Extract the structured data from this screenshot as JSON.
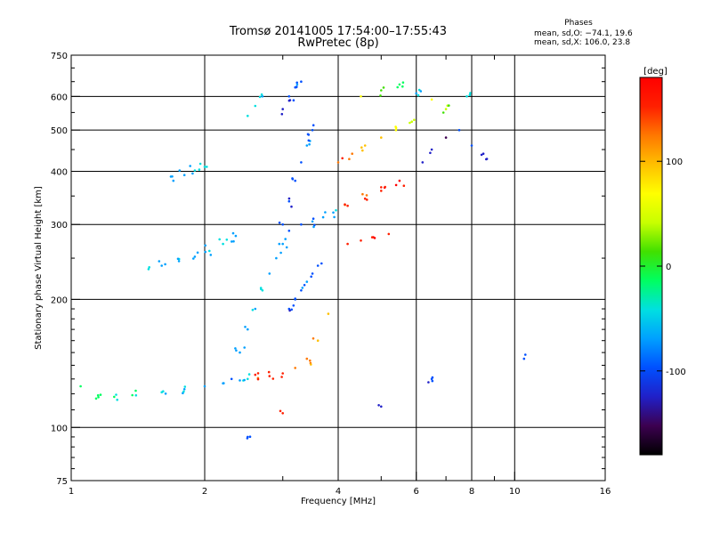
{
  "chart_data": {
    "type": "scatter",
    "title": "Tromsø 20141005 17:54:00–17:55:43",
    "subtitle": "RwPretec (8p)",
    "xlabel": "Frequency [MHz]",
    "ylabel": "Stationary phase Virtual Height [km]",
    "x_scale": "log",
    "y_scale": "log",
    "xlim": [
      1,
      16
    ],
    "ylim": [
      75,
      750
    ],
    "x_ticks": [
      1,
      2,
      4,
      6,
      8,
      10,
      16
    ],
    "y_ticks": [
      75,
      100,
      200,
      300,
      400,
      500,
      600,
      750
    ],
    "grid": true,
    "stats": {
      "heading": "Phases",
      "o_mode": "mean, sd,O: −74.1, 19.6",
      "x_mode": "mean, sd,X: 106.0, 23.8"
    },
    "colorbar": {
      "label": "[deg]",
      "range": [
        -180,
        180
      ],
      "ticks": [
        100,
        0,
        -100
      ],
      "colors": [
        "#000000",
        "#3c0050",
        "#2020c8",
        "#0050ff",
        "#00a0ff",
        "#00e0e0",
        "#00ff60",
        "#40e000",
        "#c8ff00",
        "#ffff00",
        "#ffc000",
        "#ff7800",
        "#ff2000",
        "#ff0000"
      ]
    },
    "series": [
      {
        "x": [
          1.05,
          1.15,
          1.25,
          1.4,
          1.6,
          1.8,
          2.0,
          2.2,
          2.4,
          2.5
        ],
        "y": [
          125,
          119,
          118,
          119,
          121,
          123,
          125,
          127,
          129,
          130
        ],
        "phase": [
          -20,
          -15,
          -25,
          -30,
          -55,
          -60,
          -65,
          -70,
          -60,
          -50
        ]
      },
      {
        "x": [
          1.5,
          1.6,
          1.75,
          1.9,
          2.05,
          2.2,
          2.35
        ],
        "y": [
          238,
          240,
          246,
          252,
          260,
          270,
          282
        ],
        "phase": [
          -55,
          -60,
          -65,
          -60,
          -55,
          -50,
          -60
        ]
      },
      {
        "x": [
          1.7,
          1.8,
          1.9,
          2.0
        ],
        "y": [
          380,
          392,
          402,
          410
        ],
        "phase": [
          -70,
          -60,
          -50,
          -40
        ]
      },
      {
        "x": [
          2.3,
          2.4,
          2.5,
          2.6,
          2.7,
          2.8,
          2.9,
          3.0,
          3.1
        ],
        "y": [
          130,
          150,
          170,
          190,
          210,
          230,
          250,
          270,
          290
        ],
        "phase": [
          -90,
          -80,
          -70,
          -60,
          -50,
          -60,
          -70,
          -80,
          -90
        ]
      },
      {
        "x": [
          3.0,
          3.1,
          3.2,
          3.3,
          3.4,
          3.5
        ],
        "y": [
          300,
          340,
          380,
          420,
          460,
          500
        ],
        "phase": [
          -100,
          -110,
          -95,
          -90,
          -80,
          -85
        ]
      },
      {
        "x": [
          2.5,
          2.6,
          2.7
        ],
        "y": [
          540,
          570,
          600
        ],
        "phase": [
          -40,
          -50,
          -60
        ]
      },
      {
        "x": [
          3.0,
          3.1,
          3.2,
          3.3
        ],
        "y": [
          560,
          600,
          630,
          650
        ],
        "phase": [
          -120,
          -110,
          -100,
          -90
        ]
      },
      {
        "x": [
          3.1,
          3.2,
          3.3,
          3.4,
          3.5,
          3.6
        ],
        "y": [
          190,
          200,
          210,
          220,
          230,
          240
        ],
        "phase": [
          -110,
          -100,
          -90,
          -80,
          -90,
          -100
        ]
      },
      {
        "x": [
          2.6,
          2.8,
          3.0,
          3.2,
          3.4,
          3.6,
          3.8
        ],
        "y": [
          133,
          132,
          134,
          138,
          145,
          160,
          185
        ],
        "phase": [
          140,
          150,
          160,
          130,
          120,
          110,
          100
        ]
      },
      {
        "x": [
          3.3,
          3.5,
          3.7,
          3.9,
          4.2,
          4.6,
          5.0,
          5.5
        ],
        "y": [
          300,
          305,
          312,
          320,
          332,
          345,
          360,
          380
        ],
        "phase": [
          -90,
          -80,
          -70,
          -60,
          140,
          150,
          160,
          170
        ]
      },
      {
        "x": [
          4.0,
          4.3,
          4.6,
          5.0,
          5.4,
          5.8
        ],
        "y": [
          420,
          440,
          460,
          480,
          500,
          520
        ],
        "phase": [
          130,
          120,
          110,
          90,
          60,
          40
        ]
      },
      {
        "x": [
          4.2,
          4.5,
          4.8,
          5.2
        ],
        "y": [
          270,
          275,
          280,
          285
        ],
        "phase": [
          160,
          150,
          170,
          165
        ]
      },
      {
        "x": [
          6.2,
          6.5,
          7.0,
          7.5,
          8.0,
          8.5
        ],
        "y": [
          420,
          450,
          480,
          500,
          460,
          440
        ],
        "phase": [
          -130,
          -120,
          -140,
          -100,
          -110,
          -130
        ]
      },
      {
        "x": [
          4.5,
          5.0,
          5.5,
          6.0,
          6.5,
          7.0,
          7.8
        ],
        "y": [
          600,
          620,
          640,
          610,
          590,
          560,
          600
        ],
        "phase": [
          60,
          20,
          -20,
          -60,
          80,
          30,
          -40
        ]
      },
      {
        "x": [
          2.5,
          3.0,
          5.0,
          6.5,
          10.5
        ],
        "y": [
          95,
          108,
          112,
          130,
          145
        ],
        "phase": [
          -90,
          150,
          -130,
          -100,
          -110
        ]
      }
    ]
  }
}
